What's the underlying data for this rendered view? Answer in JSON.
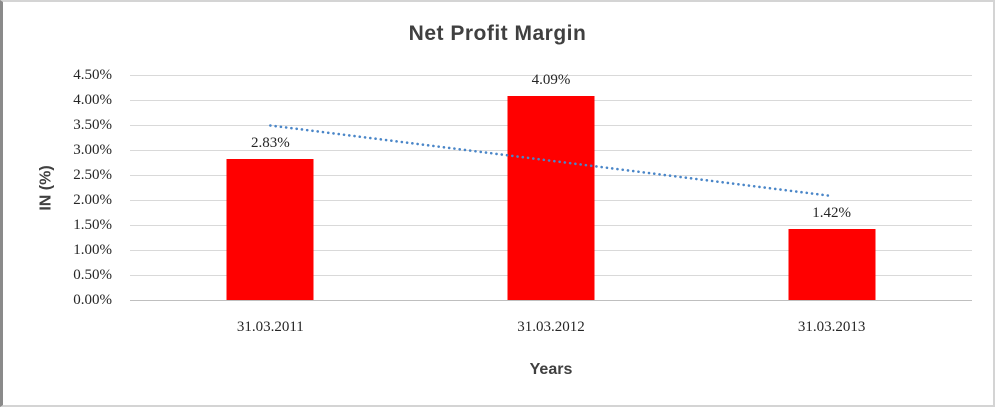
{
  "chart_data": {
    "type": "bar",
    "title": "Net Profit Margin",
    "categories": [
      "31.03.2011",
      "31.03.2012",
      "31.03.2013"
    ],
    "values": [
      2.83,
      4.09,
      1.42
    ],
    "data_labels": [
      "2.83%",
      "4.09%",
      "1.42%"
    ],
    "xlabel": "Years",
    "ylabel": "IN (%)",
    "ylim": [
      0,
      4.5
    ],
    "ytick_labels": [
      "4.50%",
      "4.00%",
      "3.50%",
      "3.00%",
      "2.50%",
      "2.00%",
      "1.50%",
      "1.00%",
      "0.50%",
      "0.00%"
    ],
    "grid": true,
    "legend": "none",
    "colors": {
      "bar": "#ff0000",
      "trendline": "#4a86c8",
      "gridline": "#d9d9d9",
      "axis_line": "#bfbfbf",
      "title_text": "#404040",
      "tick_text": "#262626"
    },
    "trendline": {
      "type": "linear",
      "style": "dotted",
      "start_value": 3.49,
      "end_value": 2.08
    }
  }
}
